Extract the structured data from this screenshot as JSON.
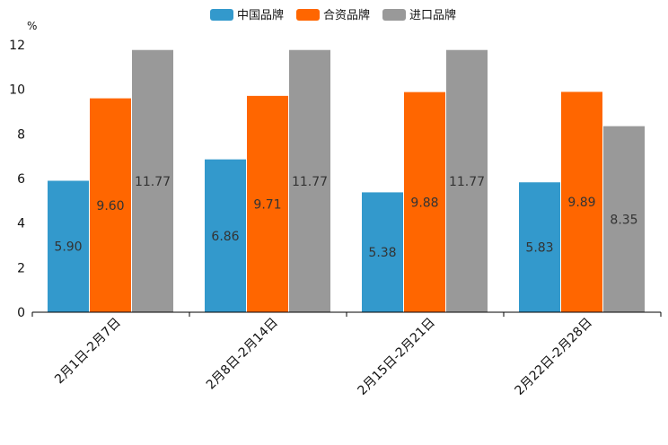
{
  "chart_data": {
    "type": "bar",
    "title": "",
    "xlabel": "",
    "ylabel": "%",
    "ylim": [
      0,
      12
    ],
    "yticks": [
      0,
      2,
      4,
      6,
      8,
      10,
      12
    ],
    "grid": false,
    "legend_position": "top-center",
    "categories": [
      "2月1日-2月7日",
      "2月8日-2月14日",
      "2月15日-2月21日",
      "2月22日-2月28日"
    ],
    "series": [
      {
        "name": "中国品牌",
        "color": "#3399cc",
        "values": [
          5.9,
          6.86,
          5.38,
          5.83
        ],
        "labels": [
          "5.90",
          "6.86",
          "5.38",
          "5.83"
        ]
      },
      {
        "name": "合资品牌",
        "color": "#ff6600",
        "values": [
          9.6,
          9.71,
          9.88,
          9.89
        ],
        "labels": [
          "9.60",
          "9.71",
          "9.88",
          "9.89"
        ]
      },
      {
        "name": "进口品牌",
        "color": "#999999",
        "values": [
          11.77,
          11.77,
          11.77,
          8.35
        ],
        "labels": [
          "11.77",
          "11.77",
          "11.77",
          "8.35"
        ]
      }
    ]
  }
}
